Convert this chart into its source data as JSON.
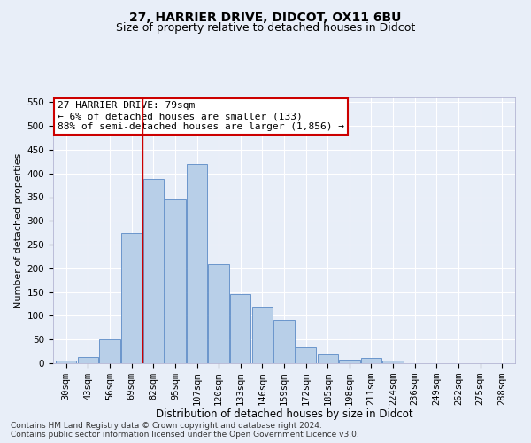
{
  "title1": "27, HARRIER DRIVE, DIDCOT, OX11 6BU",
  "title2": "Size of property relative to detached houses in Didcot",
  "xlabel": "Distribution of detached houses by size in Didcot",
  "ylabel": "Number of detached properties",
  "categories": [
    "30sqm",
    "43sqm",
    "56sqm",
    "69sqm",
    "82sqm",
    "95sqm",
    "107sqm",
    "120sqm",
    "133sqm",
    "146sqm",
    "159sqm",
    "172sqm",
    "185sqm",
    "198sqm",
    "211sqm",
    "224sqm",
    "236sqm",
    "249sqm",
    "262sqm",
    "275sqm",
    "288sqm"
  ],
  "values": [
    5,
    13,
    50,
    275,
    388,
    345,
    420,
    210,
    145,
    117,
    92,
    33,
    19,
    7,
    12,
    5,
    0,
    0,
    0,
    0,
    0
  ],
  "bar_color": "#b8cfe8",
  "bar_edge_color": "#5a8ac6",
  "vline_x_index": 3.5,
  "vline_color": "#cc0000",
  "annotation_text": "27 HARRIER DRIVE: 79sqm\n← 6% of detached houses are smaller (133)\n88% of semi-detached houses are larger (1,856) →",
  "annotation_box_facecolor": "#ffffff",
  "annotation_box_edgecolor": "#cc0000",
  "ylim": [
    0,
    560
  ],
  "yticks": [
    0,
    50,
    100,
    150,
    200,
    250,
    300,
    350,
    400,
    450,
    500,
    550
  ],
  "background_color": "#e8eef8",
  "plot_background_color": "#e8eef8",
  "grid_color": "#ffffff",
  "footer1": "Contains HM Land Registry data © Crown copyright and database right 2024.",
  "footer2": "Contains public sector information licensed under the Open Government Licence v3.0.",
  "title1_fontsize": 10,
  "title2_fontsize": 9,
  "xlabel_fontsize": 8.5,
  "ylabel_fontsize": 8,
  "tick_fontsize": 7.5,
  "annotation_fontsize": 8,
  "footer_fontsize": 6.5
}
